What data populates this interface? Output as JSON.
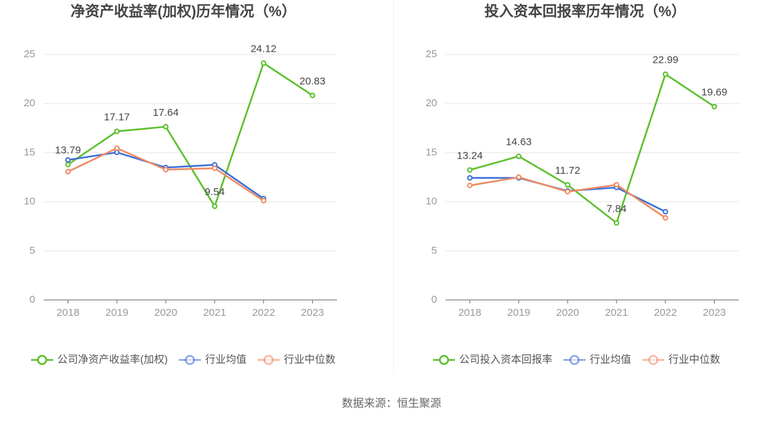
{
  "chart_data": [
    {
      "type": "line",
      "title": "净资产收益率(加权)历年情况（%）",
      "categories": [
        "2018",
        "2019",
        "2020",
        "2021",
        "2022",
        "2023"
      ],
      "series": [
        {
          "name": "公司净资产收益率(加权)",
          "color": "#5bbf2b",
          "values": [
            13.79,
            17.17,
            17.64,
            9.54,
            24.12,
            20.83
          ],
          "data_labels": true
        },
        {
          "name": "行业均值",
          "color": "#3d6fd6",
          "values": [
            14.26,
            15.03,
            13.48,
            13.76,
            10.32,
            null
          ]
        },
        {
          "name": "行业中位数",
          "color": "#ef8a62",
          "values": [
            13.06,
            15.45,
            13.27,
            13.41,
            10.11,
            null
          ]
        }
      ],
      "ylim": [
        0,
        25
      ],
      "yticks": [
        0,
        5,
        10,
        15,
        20,
        25
      ],
      "grid": true,
      "legend": "bottom"
    },
    {
      "type": "line",
      "title": "投入资本回报率历年情况（%）",
      "categories": [
        "2018",
        "2019",
        "2020",
        "2021",
        "2022",
        "2023"
      ],
      "series": [
        {
          "name": "公司投入资本回报率",
          "color": "#5bbf2b",
          "values": [
            13.24,
            14.63,
            11.72,
            7.84,
            22.99,
            19.69
          ],
          "data_labels": true
        },
        {
          "name": "行业均值",
          "color": "#3d6fd6",
          "values": [
            12.43,
            12.43,
            11.1,
            11.45,
            8.99,
            null
          ]
        },
        {
          "name": "行业中位数",
          "color": "#ef8a62",
          "values": [
            11.66,
            12.5,
            11.03,
            11.73,
            8.36,
            null
          ]
        }
      ],
      "ylim": [
        0,
        25
      ],
      "yticks": [
        0,
        5,
        10,
        15,
        20,
        25
      ],
      "grid": true,
      "legend": "bottom"
    }
  ],
  "source": "数据来源：恒生聚源"
}
